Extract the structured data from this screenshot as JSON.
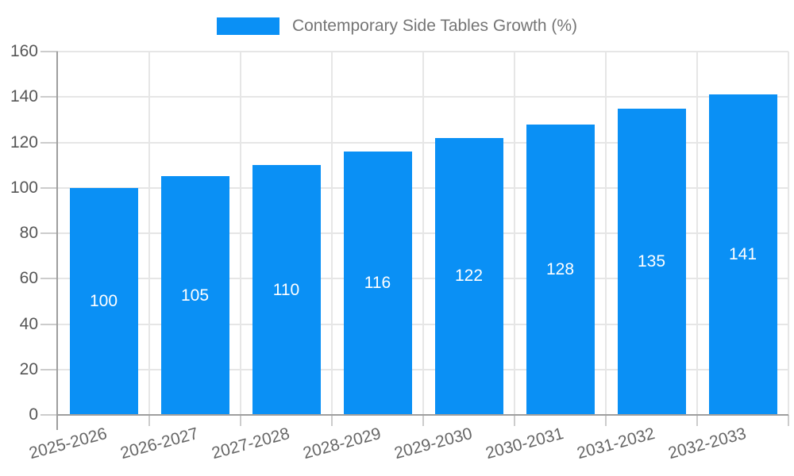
{
  "chart_data": {
    "type": "bar",
    "title": "Contemporary Side Tables Growth (%)",
    "categories": [
      "2025-2026",
      "2026-2027",
      "2027-2028",
      "2028-2029",
      "2029-2030",
      "2030-2031",
      "2031-2032",
      "2032-2033"
    ],
    "values": [
      100,
      105,
      110,
      116,
      122,
      128,
      135,
      141
    ],
    "xlabel": "",
    "ylabel": "",
    "ylim": [
      0,
      160
    ],
    "yticks": [
      0,
      20,
      40,
      60,
      80,
      100,
      120,
      140,
      160
    ],
    "grid": true,
    "legend_position": "top-center",
    "value_label_position": "inside-center",
    "colors": {
      "bar": "#0a90f5",
      "bar_value_label": "#ffffff",
      "legend_text": "#757575",
      "axis_tick_label": "#565656",
      "x_tick_label": "#666666",
      "axis_line": "#9e9e9e",
      "gridline": "#e6e6e6",
      "tick_mark": "#cccccc",
      "background": "#ffffff"
    }
  }
}
